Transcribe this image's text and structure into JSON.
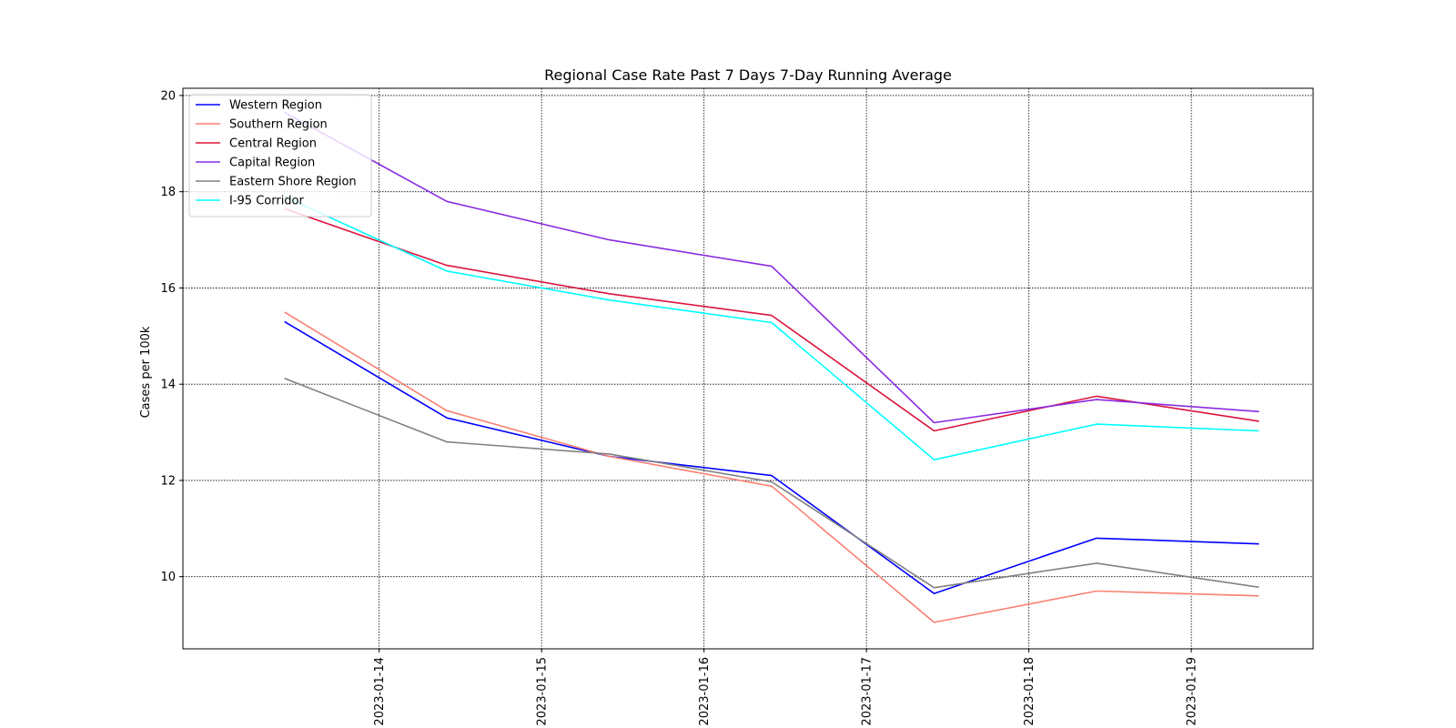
{
  "chart_data": {
    "type": "line",
    "title": "Regional Case Rate  Past 7 Days 7-Day Running Average",
    "xlabel": "",
    "ylabel": "Cases per 100k",
    "x": [
      "2023-01-13T10:00",
      "2023-01-14T10:00",
      "2023-01-15T10:00",
      "2023-01-16T10:00",
      "2023-01-17T10:00",
      "2023-01-18T10:00",
      "2023-01-19T10:00"
    ],
    "x_ticks": [
      "2023-01-14",
      "2023-01-15",
      "2023-01-16",
      "2023-01-17",
      "2023-01-18",
      "2023-01-19"
    ],
    "xlim": [
      "2023-01-12T19:00",
      "2023-01-19T18:00"
    ],
    "ylim": [
      8.5,
      20.15
    ],
    "y_ticks": [
      10,
      12,
      14,
      16,
      18,
      20
    ],
    "grid": true,
    "legend_position": "top-left",
    "series": [
      {
        "name": "Western Region",
        "color": "#0000ff",
        "values": [
          15.3,
          13.3,
          12.5,
          12.1,
          9.65,
          10.8,
          10.68
        ]
      },
      {
        "name": "Southern Region",
        "color": "#fa8072",
        "values": [
          15.5,
          13.45,
          12.5,
          11.88,
          9.05,
          9.7,
          9.6
        ]
      },
      {
        "name": "Central Region",
        "color": "#dc143c",
        "values": [
          17.65,
          16.47,
          15.88,
          15.43,
          13.03,
          13.75,
          13.23
        ]
      },
      {
        "name": "Capital Region",
        "color": "#8a2be2",
        "values": [
          19.65,
          17.8,
          17.0,
          16.45,
          13.2,
          13.68,
          13.43
        ]
      },
      {
        "name": "Eastern Shore Region",
        "color": "#808080",
        "values": [
          14.12,
          12.8,
          12.55,
          11.97,
          9.77,
          10.28,
          9.78
        ]
      },
      {
        "name": "I-95 Corridor",
        "color": "#00ffff",
        "values": [
          17.9,
          16.35,
          15.75,
          15.28,
          12.43,
          13.17,
          13.03
        ]
      }
    ]
  }
}
